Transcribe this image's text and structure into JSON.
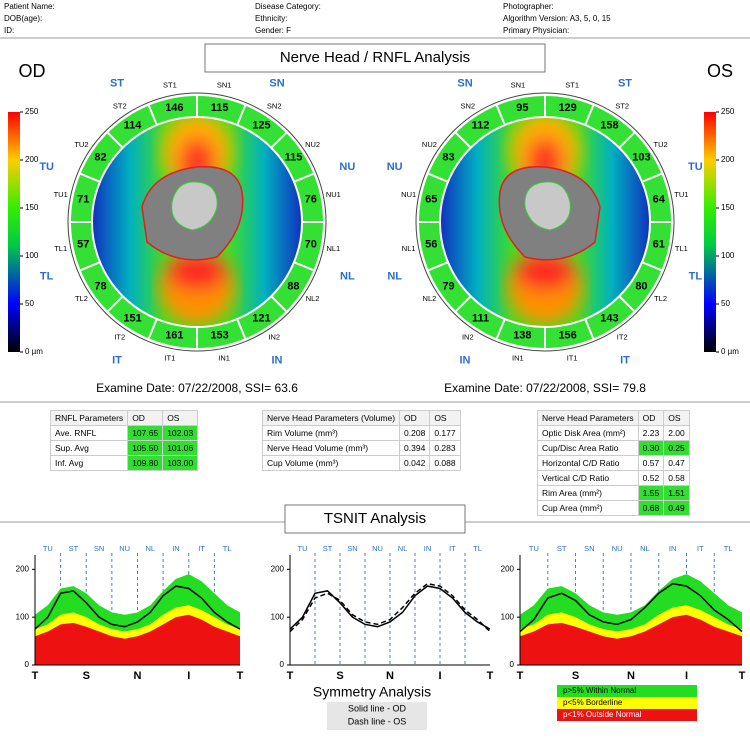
{
  "header": {
    "patient_name": "Patient Name:",
    "dob": "DOB(age):",
    "id": "ID:",
    "disease": "Disease Category:",
    "ethnicity": "Ethnicity:",
    "gender": "Gender: F",
    "photographer": "Photographer:",
    "algorithm": "Algorithm Version: A3, 5, 0, 15",
    "physician": "Primary Physician:"
  },
  "title": "Nerve Head / RNFL Analysis",
  "colorbar": {
    "lim": [
      0,
      250
    ],
    "ticks": [
      250,
      200,
      150,
      100,
      50,
      {
        "value": 0,
        "label": "0 µm"
      }
    ]
  },
  "eyes": [
    {
      "label": "OD",
      "examine": "Examine Date: 07/22/2008, SSI= 63.6",
      "quadrants": [
        "SN",
        "NU",
        "NL",
        "IN",
        "IT",
        "TL",
        "TU",
        "ST"
      ],
      "sectors": [
        {
          "name": "SN1",
          "value": 115
        },
        {
          "name": "SN2",
          "value": 125
        },
        {
          "name": "NU2",
          "value": 115
        },
        {
          "name": "NU1",
          "value": 76
        },
        {
          "name": "NL1",
          "value": 70
        },
        {
          "name": "NL2",
          "value": 88
        },
        {
          "name": "IN2",
          "value": 121
        },
        {
          "name": "IN1",
          "value": 153
        },
        {
          "name": "IT1",
          "value": 161
        },
        {
          "name": "IT2",
          "value": 151
        },
        {
          "name": "TL2",
          "value": 78
        },
        {
          "name": "TL1",
          "value": 57
        },
        {
          "name": "TU1",
          "value": 71
        },
        {
          "name": "TU2",
          "value": 82
        },
        {
          "name": "ST2",
          "value": 114
        },
        {
          "name": "ST1",
          "value": 146
        }
      ]
    },
    {
      "label": "OS",
      "examine": "Examine Date: 07/22/2008, SSI= 79.8",
      "quadrants": [
        "ST",
        "TU",
        "TL",
        "IT",
        "IN",
        "NL",
        "NU",
        "SN"
      ],
      "sectors": [
        {
          "name": "ST1",
          "value": 129
        },
        {
          "name": "ST2",
          "value": 158
        },
        {
          "name": "TU2",
          "value": 103
        },
        {
          "name": "TU1",
          "value": 64
        },
        {
          "name": "TL1",
          "value": 61
        },
        {
          "name": "TL2",
          "value": 80
        },
        {
          "name": "IT2",
          "value": 143
        },
        {
          "name": "IT1",
          "value": 156
        },
        {
          "name": "IN1",
          "value": 138
        },
        {
          "name": "IN2",
          "value": 111
        },
        {
          "name": "NL2",
          "value": 79
        },
        {
          "name": "NL1",
          "value": 56
        },
        {
          "name": "NU1",
          "value": 65
        },
        {
          "name": "NU2",
          "value": 83
        },
        {
          "name": "SN2",
          "value": 112
        },
        {
          "name": "SN1",
          "value": 95
        }
      ]
    }
  ],
  "tables": [
    {
      "header": [
        "RNFL Parameters",
        "OD",
        "OS"
      ],
      "rows": [
        {
          "cells": [
            "Ave. RNFL",
            "107.65",
            "102.03"
          ],
          "color": "#33dd33"
        },
        {
          "cells": [
            "Sup. Avg",
            "105.50",
            "101.06"
          ],
          "color": "#33dd33"
        },
        {
          "cells": [
            "Inf. Avg",
            "109.80",
            "103.00"
          ],
          "color": "#33dd33"
        }
      ]
    },
    {
      "header": [
        "Nerve Head Parameters (Volume)",
        "OD",
        "OS"
      ],
      "rows": [
        {
          "cells": [
            "Rim Volume (mm³)",
            "0.208",
            "0.177"
          ]
        },
        {
          "cells": [
            "Nerve Head Volume (mm³)",
            "0.394",
            "0.283"
          ]
        },
        {
          "cells": [
            "Cup Volume (mm³)",
            "0.042",
            "0.088"
          ]
        }
      ]
    },
    {
      "header": [
        "Nerve Head Parameters",
        "OD",
        "OS"
      ],
      "rows": [
        {
          "cells": [
            "Optic Disk Area (mm²)",
            "2.23",
            "2.00"
          ]
        },
        {
          "cells": [
            "Cup/Disc Area Ratio",
            "0.30",
            "0.25"
          ],
          "color": "#33dd33"
        },
        {
          "cells": [
            "Horizontal C/D Ratio",
            "0.57",
            "0.47"
          ]
        },
        {
          "cells": [
            "Vertical C/D Ratio",
            "0.52",
            "0.58"
          ]
        },
        {
          "cells": [
            "Rim Area (mm²)",
            "1.55",
            "1.51"
          ],
          "color": "#33dd33"
        },
        {
          "cells": [
            "Cup Area (mm²)",
            "0.68",
            "0.49"
          ],
          "color": "#33dd33"
        }
      ]
    }
  ],
  "tsnit": {
    "title": "TSNIT Analysis",
    "symmetry": {
      "title": "Symmetry Analysis",
      "solid": "Solid line - OD",
      "dash": "Dash line - OS"
    },
    "charts": [
      {
        "type": "area",
        "categories": [
          "TU",
          "ST",
          "SN",
          "NU",
          "NL",
          "IN",
          "IT",
          "TL"
        ],
        "xlabels": [
          "T",
          "S",
          "N",
          "I",
          "T"
        ],
        "ylim": [
          0,
          230
        ],
        "yticks": [
          0,
          100,
          200
        ],
        "series": [
          {
            "name": "p>5% Within Normal",
            "color": "#22dd22",
            "values": [
              105,
              125,
              160,
              165,
              150,
              125,
              110,
              105,
              110,
              125,
              155,
              180,
              190,
              175,
              150,
              125,
              110
            ]
          },
          {
            "name": "p<5% Borderline",
            "color": "#ffff00",
            "values": [
              75,
              85,
              105,
              110,
              100,
              85,
              75,
              70,
              75,
              85,
              105,
              120,
              125,
              115,
              100,
              85,
              75
            ]
          },
          {
            "name": "p<1% Outside Normal",
            "color": "#ee1111",
            "values": [
              60,
              70,
              85,
              88,
              80,
              70,
              60,
              55,
              60,
              70,
              85,
              100,
              105,
              95,
              80,
              70,
              60
            ]
          },
          {
            "type": "line",
            "color": "#000000",
            "values": [
              75,
              100,
              150,
              155,
              130,
              100,
              85,
              80,
              90,
              110,
              145,
              165,
              160,
              140,
              110,
              90,
              75
            ]
          }
        ]
      },
      {
        "type": "line",
        "categories": [
          "TU",
          "ST",
          "SN",
          "NU",
          "NL",
          "IN",
          "IT",
          "TL"
        ],
        "xlabels": [
          "T",
          "S",
          "N",
          "I",
          "T"
        ],
        "ylim": [
          0,
          230
        ],
        "yticks": [
          0,
          100,
          200
        ],
        "series": [
          {
            "type": "line",
            "color": "#000000",
            "values": [
              75,
              100,
              150,
              155,
              130,
              100,
              85,
              80,
              90,
              110,
              145,
              165,
              160,
              140,
              110,
              90,
              75
            ]
          },
          {
            "type": "line",
            "color": "#000000",
            "dash": true,
            "values": [
              70,
              95,
              140,
              150,
              135,
              105,
              90,
              85,
              95,
              120,
              150,
              170,
              165,
              145,
              115,
              95,
              70
            ]
          }
        ]
      },
      {
        "type": "area",
        "categories": [
          "TU",
          "ST",
          "SN",
          "NU",
          "NL",
          "IN",
          "IT",
          "TL"
        ],
        "xlabels": [
          "T",
          "S",
          "N",
          "I",
          "T"
        ],
        "ylim": [
          0,
          230
        ],
        "yticks": [
          0,
          100,
          200
        ],
        "series": [
          {
            "color": "#22dd22",
            "values": [
              105,
              125,
              160,
              165,
              150,
              125,
              110,
              105,
              110,
              125,
              155,
              180,
              190,
              175,
              150,
              125,
              110
            ]
          },
          {
            "color": "#ffff00",
            "values": [
              75,
              85,
              105,
              110,
              100,
              85,
              75,
              70,
              75,
              85,
              105,
              120,
              125,
              115,
              100,
              85,
              75
            ]
          },
          {
            "color": "#ee1111",
            "values": [
              60,
              70,
              85,
              88,
              80,
              70,
              60,
              55,
              60,
              70,
              85,
              100,
              105,
              95,
              80,
              70,
              60
            ]
          },
          {
            "type": "line",
            "color": "#000000",
            "values": [
              70,
              95,
              140,
              150,
              135,
              105,
              90,
              85,
              95,
              120,
              150,
              170,
              165,
              145,
              115,
              95,
              70
            ]
          }
        ]
      }
    ]
  }
}
